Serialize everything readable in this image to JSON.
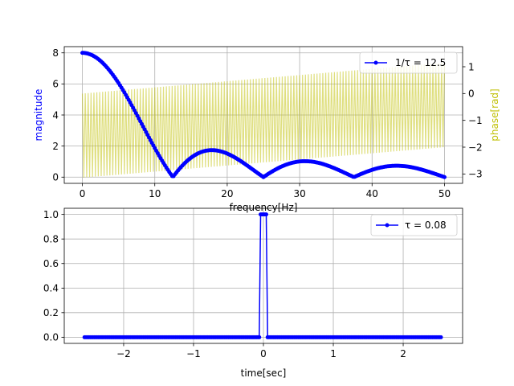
{
  "chart_data": [
    {
      "type": "line",
      "title": "",
      "xlabel": "frequency[Hz]",
      "ylabel": "magnitude",
      "ylabel_color": "#0000ff",
      "y2label": "phase[rad]",
      "y2label_color": "#bfbf00",
      "xlim": [
        -2.5,
        52.5
      ],
      "ylim": [
        -0.4,
        8.4
      ],
      "y2lim": [
        -3.35,
        1.75
      ],
      "xticks": [
        0,
        10,
        20,
        30,
        40,
        50
      ],
      "yticks": [
        0,
        2,
        4,
        6,
        8
      ],
      "y2ticks": [
        -3,
        -2,
        -1,
        0,
        1
      ],
      "grid": true,
      "legend": {
        "position": "top-right",
        "entries": [
          "1/τ = 12.5"
        ]
      },
      "series": [
        {
          "name": "1/τ = 12.5",
          "axis": "left",
          "color": "#0000ff",
          "marker": "dot",
          "function": "abs_sinc",
          "params": {
            "amplitude": 8,
            "zero_spacing": 12.5
          },
          "x_start": 0,
          "x_end": 50,
          "x_step": 0.2
        },
        {
          "name": "",
          "axis": "right",
          "color": "#bfbf00",
          "alpha": 0.5,
          "function": "phase_sawtooth",
          "params": {
            "low_start": -3.14,
            "low_end": -2.0,
            "high_start": 0.0,
            "high_end": 1.15
          },
          "x_start": 0,
          "x_end": 50,
          "x_step": 0.2
        }
      ]
    },
    {
      "type": "line",
      "title": "",
      "xlabel": "time[sec]",
      "ylabel": "",
      "xlim": [
        -2.85,
        2.85
      ],
      "ylim": [
        -0.05,
        1.05
      ],
      "xticks": [
        -2,
        -1,
        0,
        1,
        2
      ],
      "yticks": [
        0.0,
        0.2,
        0.4,
        0.6,
        0.8,
        1.0
      ],
      "grid": true,
      "legend": {
        "position": "top-right",
        "entries": [
          "τ = 0.08"
        ]
      },
      "series": [
        {
          "name": "τ = 0.08",
          "color": "#0000ff",
          "marker": "dot",
          "function": "rect_pulse",
          "params": {
            "center": 0,
            "width": 0.08,
            "height": 1
          },
          "x_start": -2.56,
          "x_end": 2.55,
          "x_step": 0.02
        }
      ]
    }
  ]
}
